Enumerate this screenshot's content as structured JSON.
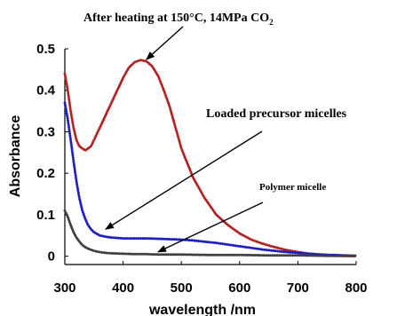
{
  "chart_data": {
    "type": "line",
    "title": "",
    "xlabel": "wavelength /nm",
    "ylabel": "Absorbance",
    "xlim": [
      300,
      800
    ],
    "ylim": [
      -0.02,
      0.5
    ],
    "xticks": [
      "300",
      "400",
      "500",
      "600",
      "700",
      "800"
    ],
    "yticks": [
      "0",
      "0.1",
      "0.2",
      "0.3",
      "0.4",
      "0.5"
    ],
    "grid": false,
    "legend": "none",
    "annotations": [
      {
        "text_main": "After heating  at 150°C, 14MPa  CO",
        "text_sub": "2",
        "series": "red"
      },
      {
        "text_main": "Loaded precursor  micelles",
        "text_sub": "",
        "series": "blue"
      },
      {
        "text_main": "Polymer micelle",
        "text_sub": "",
        "series": "black"
      }
    ],
    "series": [
      {
        "color": "#b22222",
        "marker": "dot",
        "x": [
          300,
          305,
          310,
          315,
          320,
          325,
          330,
          335,
          340,
          345,
          350,
          360,
          370,
          380,
          390,
          400,
          410,
          420,
          430,
          440,
          450,
          460,
          470,
          480,
          490,
          500,
          520,
          540,
          560,
          580,
          600,
          620,
          640,
          660,
          680,
          700,
          720,
          740,
          760,
          780,
          800
        ],
        "y": [
          0.44,
          0.4,
          0.35,
          0.31,
          0.28,
          0.265,
          0.26,
          0.255,
          0.26,
          0.265,
          0.28,
          0.31,
          0.34,
          0.37,
          0.4,
          0.43,
          0.455,
          0.468,
          0.473,
          0.47,
          0.458,
          0.435,
          0.4,
          0.36,
          0.31,
          0.26,
          0.19,
          0.14,
          0.1,
          0.075,
          0.055,
          0.04,
          0.03,
          0.022,
          0.015,
          0.01,
          0.006,
          0.003,
          0.0015,
          0.0005,
          0.0
        ]
      },
      {
        "color": "#1f1fbf",
        "marker": "dot",
        "x": [
          300,
          305,
          310,
          315,
          320,
          325,
          330,
          335,
          340,
          345,
          350,
          360,
          370,
          380,
          390,
          400,
          420,
          440,
          460,
          480,
          500,
          520,
          540,
          560,
          580,
          600,
          620,
          640,
          660,
          680,
          700,
          720,
          740,
          760,
          780,
          800
        ],
        "y": [
          0.37,
          0.33,
          0.28,
          0.23,
          0.18,
          0.14,
          0.11,
          0.09,
          0.075,
          0.065,
          0.058,
          0.05,
          0.047,
          0.045,
          0.044,
          0.043,
          0.043,
          0.043,
          0.042,
          0.041,
          0.04,
          0.038,
          0.035,
          0.032,
          0.028,
          0.024,
          0.02,
          0.016,
          0.013,
          0.01,
          0.008,
          0.006,
          0.004,
          0.003,
          0.002,
          0.001
        ]
      },
      {
        "color": "#404040",
        "marker": "dot",
        "x": [
          300,
          305,
          310,
          315,
          320,
          325,
          330,
          335,
          340,
          350,
          360,
          370,
          380,
          400,
          420,
          440,
          460,
          480,
          500,
          550,
          600,
          650,
          700,
          750,
          800
        ],
        "y": [
          0.11,
          0.095,
          0.075,
          0.058,
          0.045,
          0.035,
          0.027,
          0.022,
          0.018,
          0.013,
          0.01,
          0.008,
          0.007,
          0.006,
          0.005,
          0.005,
          0.004,
          0.004,
          0.004,
          0.003,
          0.003,
          0.002,
          0.002,
          0.001,
          0.001
        ]
      }
    ]
  }
}
